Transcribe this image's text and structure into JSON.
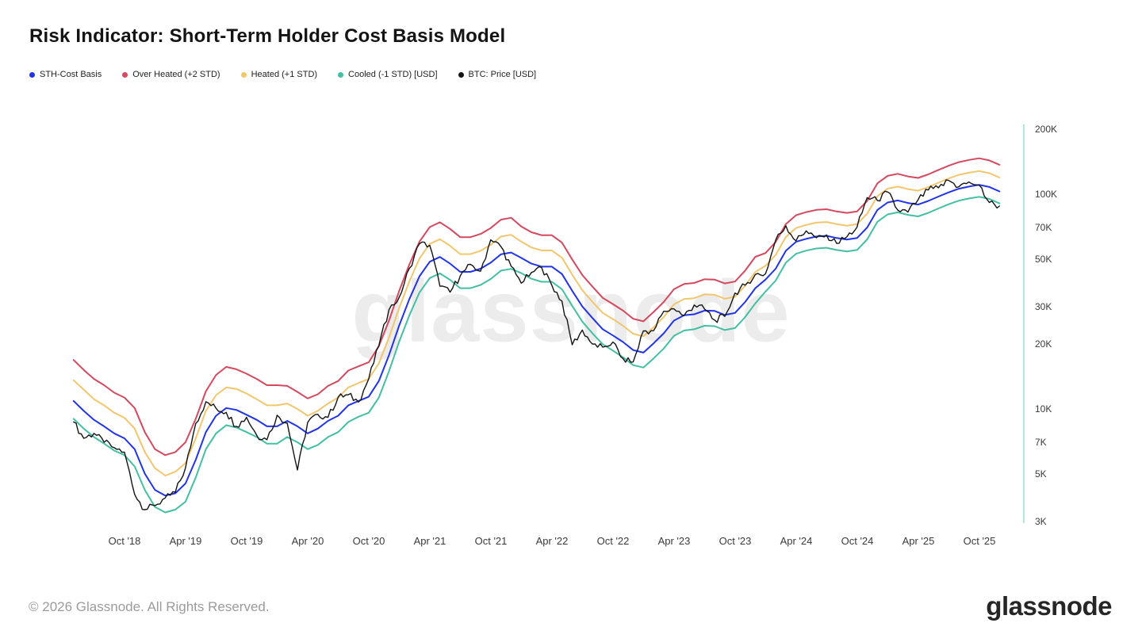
{
  "page": {
    "title": "Risk Indicator: Short-Term Holder Cost Basis Model",
    "footer_copyright": "© 2026 Glassnode. All Rights Reserved.",
    "brand_logo_text": "glassnode",
    "watermark_text": "glassnode"
  },
  "legend": [
    {
      "label": "STH-Cost Basis",
      "color": "#2134eb"
    },
    {
      "label": "Over Heated (+2 STD)",
      "color": "#d5495f"
    },
    {
      "label": "Heated (+1 STD)",
      "color": "#f2c66d"
    },
    {
      "label": "Cooled (-1 STD) [USD]",
      "color": "#43bfa3"
    },
    {
      "label": "BTC: Price [USD]",
      "color": "#141414"
    }
  ],
  "chart_data": {
    "type": "line",
    "title": "Risk Indicator: Short-Term Holder Cost Basis Model",
    "y_scale": "log",
    "ylim": [
      2940,
      244000
    ],
    "grid": false,
    "legend_position": "top-left",
    "axis_line_color": "#b3e8dd",
    "y_ticks": [
      {
        "label": "200K",
        "value": 200000
      },
      {
        "label": "100K",
        "value": 100000
      },
      {
        "label": "70K",
        "value": 70000
      },
      {
        "label": "50K",
        "value": 50000
      },
      {
        "label": "30K",
        "value": 30000
      },
      {
        "label": "20K",
        "value": 20000
      },
      {
        "label": "10K",
        "value": 10000
      },
      {
        "label": "7K",
        "value": 7000
      },
      {
        "label": "5K",
        "value": 5000
      },
      {
        "label": "3K",
        "value": 3000
      }
    ],
    "x_tick_labels": [
      "Oct '18",
      "Apr '19",
      "Oct '19",
      "Apr '20",
      "Oct '20",
      "Apr '21",
      "Oct '21",
      "Apr '22",
      "Oct '22",
      "Apr '23",
      "Oct '23",
      "Apr '24",
      "Oct '24",
      "Apr '25",
      "Oct '25"
    ],
    "months": [
      "2018-05",
      "2018-06",
      "2018-07",
      "2018-08",
      "2018-09",
      "2018-10",
      "2018-11",
      "2018-12",
      "2019-01",
      "2019-02",
      "2019-03",
      "2019-04",
      "2019-05",
      "2019-06",
      "2019-07",
      "2019-08",
      "2019-09",
      "2019-10",
      "2019-11",
      "2019-12",
      "2020-01",
      "2020-02",
      "2020-03",
      "2020-04",
      "2020-05",
      "2020-06",
      "2020-07",
      "2020-08",
      "2020-09",
      "2020-10",
      "2020-11",
      "2020-12",
      "2021-01",
      "2021-02",
      "2021-03",
      "2021-04",
      "2021-05",
      "2021-06",
      "2021-07",
      "2021-08",
      "2021-09",
      "2021-10",
      "2021-11",
      "2021-12",
      "2022-01",
      "2022-02",
      "2022-03",
      "2022-04",
      "2022-05",
      "2022-06",
      "2022-07",
      "2022-08",
      "2022-09",
      "2022-10",
      "2022-11",
      "2022-12",
      "2023-01",
      "2023-02",
      "2023-03",
      "2023-04",
      "2023-05",
      "2023-06",
      "2023-07",
      "2023-08",
      "2023-09",
      "2023-10",
      "2023-11",
      "2023-12",
      "2024-01",
      "2024-02",
      "2024-03",
      "2024-04",
      "2024-05",
      "2024-06",
      "2024-07",
      "2024-08",
      "2024-09",
      "2024-10",
      "2024-11",
      "2024-12",
      "2025-01",
      "2025-02",
      "2025-03",
      "2025-04",
      "2025-05",
      "2025-06",
      "2025-07",
      "2025-08",
      "2025-09",
      "2025-10",
      "2025-11",
      "2025-12"
    ],
    "series": [
      {
        "name": "Over Heated (+2 STD)",
        "color": "#d5495f",
        "values": [
          16900,
          15200,
          13800,
          12900,
          11900,
          11300,
          10100,
          7800,
          6500,
          6100,
          6300,
          7000,
          9000,
          12100,
          14400,
          15700,
          15300,
          14600,
          13800,
          12900,
          12900,
          12800,
          12000,
          11200,
          11700,
          12800,
          13500,
          15100,
          15800,
          16500,
          19600,
          25800,
          35500,
          47100,
          60200,
          70300,
          74000,
          68900,
          63100,
          63100,
          65300,
          69600,
          76100,
          77600,
          70700,
          66500,
          64400,
          64400,
          59500,
          49700,
          42000,
          37100,
          32900,
          30800,
          28700,
          26300,
          25600,
          28300,
          31500,
          36100,
          38200,
          38600,
          40200,
          40000,
          38400,
          39200,
          44100,
          51100,
          53200,
          59900,
          72500,
          79800,
          82500,
          84500,
          85100,
          83100,
          81800,
          83100,
          93100,
          112400,
          121700,
          124400,
          121000,
          119000,
          123700,
          129700,
          135700,
          141000,
          144300,
          147000,
          143600,
          137000
        ]
      },
      {
        "name": "Heated (+1 STD)",
        "color": "#f2c66d",
        "values": [
          13600,
          12300,
          11100,
          10400,
          9600,
          9100,
          8100,
          6300,
          5300,
          4900,
          5100,
          5600,
          7300,
          9800,
          11600,
          12600,
          12400,
          11800,
          11100,
          10400,
          10400,
          10600,
          10000,
          9300,
          9800,
          10600,
          11300,
          12600,
          13200,
          13800,
          16300,
          21500,
          29600,
          39300,
          50200,
          58700,
          61700,
          57500,
          52600,
          52600,
          54500,
          58100,
          63500,
          64700,
          60100,
          56500,
          54700,
          54700,
          50600,
          42200,
          35700,
          31500,
          28000,
          26200,
          24400,
          22400,
          21800,
          24000,
          26800,
          30700,
          32500,
          32800,
          34200,
          34000,
          32600,
          33300,
          37500,
          43400,
          46400,
          52200,
          63200,
          69600,
          71900,
          73700,
          74200,
          72500,
          71300,
          72500,
          81200,
          98000,
          106100,
          108500,
          105600,
          103800,
          107900,
          113100,
          118300,
          123000,
          125900,
          128200,
          125300,
          119500
        ]
      },
      {
        "name": "Cooled (-1 STD) [USD]",
        "color": "#43bfa3",
        "values": [
          9000,
          8100,
          7400,
          6900,
          6400,
          6100,
          5400,
          4200,
          3500,
          3300,
          3400,
          3700,
          4800,
          6500,
          7700,
          8400,
          8200,
          7800,
          7400,
          6900,
          6900,
          7400,
          7000,
          6500,
          6800,
          7400,
          7800,
          8700,
          9200,
          9600,
          11300,
          15000,
          20600,
          27300,
          34900,
          40700,
          42800,
          39900,
          36500,
          36500,
          37800,
          40300,
          44100,
          44900,
          42900,
          40400,
          39100,
          39100,
          36100,
          30200,
          25500,
          22500,
          20000,
          18700,
          17400,
          16000,
          15600,
          17200,
          19100,
          21900,
          23200,
          23500,
          24400,
          24300,
          23300,
          23800,
          26800,
          31000,
          35200,
          39600,
          48000,
          52800,
          54600,
          55900,
          56300,
          55000,
          54100,
          55000,
          61600,
          74400,
          80500,
          82300,
          80100,
          78800,
          81800,
          85800,
          89800,
          93300,
          95500,
          97200,
          95000,
          90600
        ]
      },
      {
        "name": "STH-Cost Basis",
        "color": "#2134eb",
        "values": [
          10900,
          9800,
          8900,
          8300,
          7700,
          7300,
          6500,
          5000,
          4200,
          3950,
          4050,
          4500,
          5800,
          7800,
          9300,
          10100,
          9900,
          9400,
          8900,
          8300,
          8300,
          8800,
          8300,
          7700,
          8100,
          8800,
          9300,
          10400,
          10900,
          11400,
          13500,
          17800,
          24500,
          32500,
          41500,
          48500,
          51000,
          47500,
          43500,
          43500,
          45000,
          48000,
          52500,
          53500,
          50500,
          47500,
          46000,
          46000,
          42500,
          35500,
          30000,
          26500,
          23500,
          22000,
          20500,
          18800,
          18300,
          20200,
          22500,
          25800,
          27300,
          27600,
          28700,
          28600,
          27400,
          28000,
          31500,
          36500,
          40000,
          45000,
          54500,
          60000,
          62000,
          63500,
          64000,
          62500,
          61500,
          62500,
          70000,
          84500,
          91500,
          93500,
          91000,
          89500,
          93000,
          97500,
          102000,
          106000,
          108500,
          110500,
          108000,
          103000
        ]
      },
      {
        "name": "BTC: Price [USD]",
        "color": "#141414",
        "noisy": true,
        "values": [
          8700,
          7300,
          7700,
          7000,
          6600,
          6300,
          4000,
          3400,
          3550,
          3850,
          4100,
          5320,
          8560,
          10800,
          10080,
          9630,
          8290,
          9150,
          7550,
          7190,
          9350,
          8600,
          5200,
          8650,
          9450,
          9140,
          11350,
          11650,
          10780,
          13800,
          19700,
          29000,
          33100,
          45200,
          58800,
          57800,
          37300,
          35000,
          41600,
          47150,
          43800,
          61300,
          57000,
          46200,
          38500,
          43200,
          45540,
          37700,
          31800,
          19900,
          23300,
          20050,
          19400,
          20500,
          17150,
          16550,
          23100,
          23150,
          28500,
          29250,
          27200,
          30480,
          29230,
          25940,
          26970,
          34650,
          37700,
          42270,
          42580,
          61200,
          71330,
          60640,
          67500,
          62680,
          64620,
          58970,
          63330,
          70200,
          96400,
          93400,
          102400,
          84350,
          82550,
          94200,
          104600,
          107100,
          115800,
          108200,
          114000,
          110100,
          91500,
          88000
        ]
      }
    ]
  }
}
